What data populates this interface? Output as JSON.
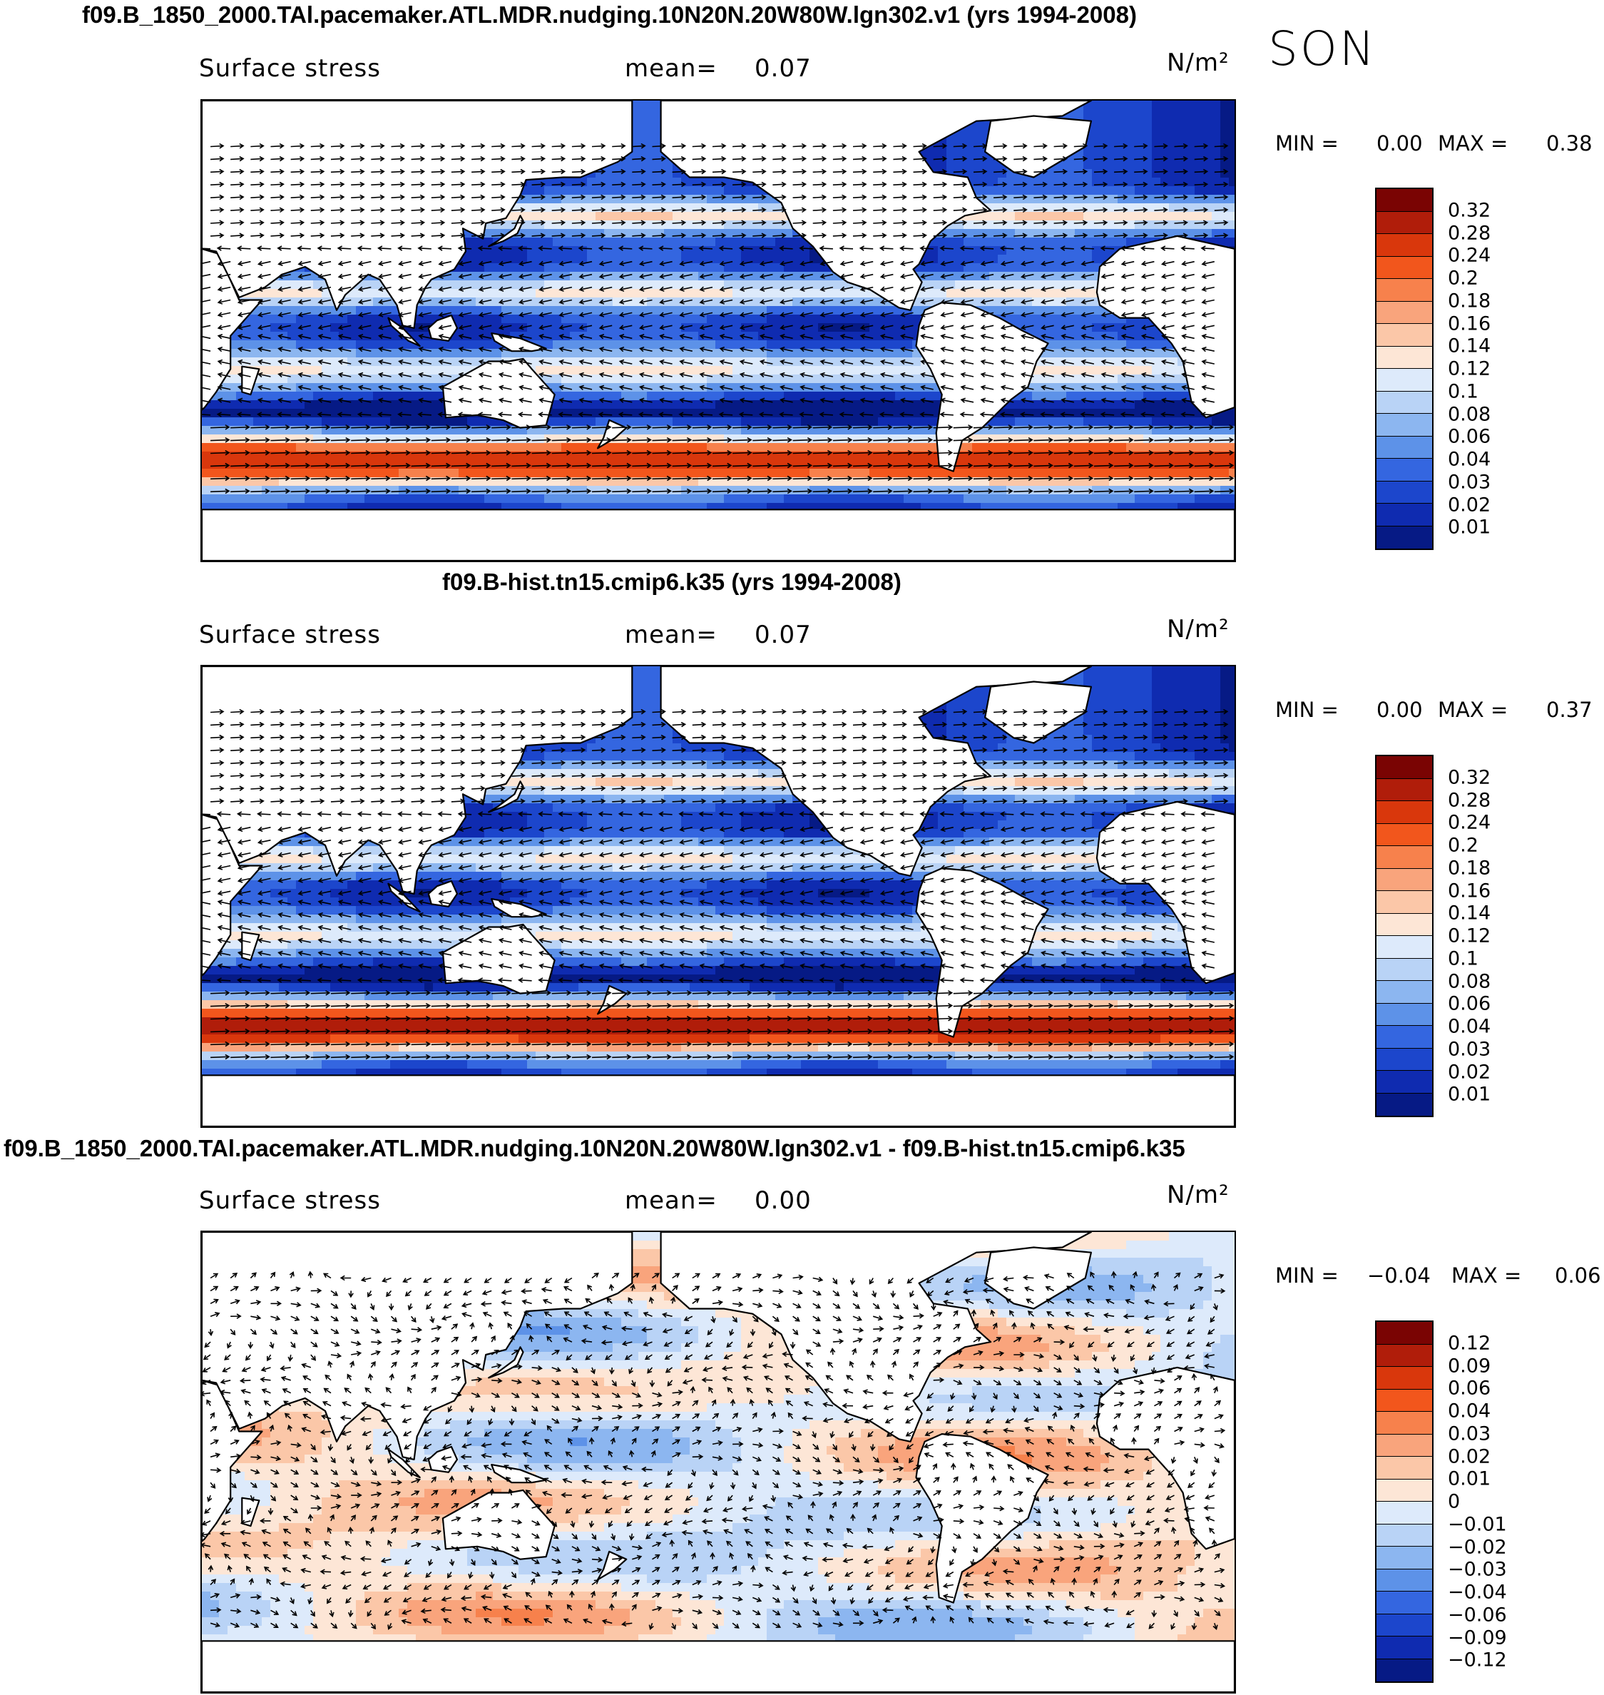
{
  "season": "SON",
  "panels": [
    {
      "title": "f09.B_1850_2000.TAl.pacemaker.ATL.MDR.nudging.10N20N.20W80W.lgn302.v1 (yrs 1994-2008)",
      "variable": "Surface stress",
      "mean_label": "mean=",
      "mean_value": "0.07",
      "units": "N/m²",
      "min_label": "MIN =",
      "min_value": "0.00",
      "max_label": "MAX =",
      "max_value": "0.38",
      "colorbar": {
        "labels": [
          "0.32",
          "0.28",
          "0.24",
          "0.2",
          "0.18",
          "0.16",
          "0.14",
          "0.12",
          "0.1",
          "0.08",
          "0.06",
          "0.04",
          "0.03",
          "0.02",
          "0.01"
        ],
        "colors": [
          "#7a0403",
          "#b01d0a",
          "#d9370c",
          "#f2561c",
          "#f7814c",
          "#f9a47c",
          "#fbc7a8",
          "#fde6d6",
          "#ddeafb",
          "#b9d3f6",
          "#8cb6f0",
          "#5d92e8",
          "#3466e0",
          "#1c46cc",
          "#0f2bb0",
          "#061a85"
        ]
      },
      "chart_data": {
        "type": "heatmap",
        "field": "Surface stress with wind-stress vectors (SON)",
        "units": "N/m²",
        "mean": 0.07,
        "min": 0.0,
        "max": 0.38,
        "features": [
          "strong westerly band 40S-60S (0.18-0.32)",
          "weak stress (0.01-0.04) over subtropical bands",
          "trade winds in tropical Pacific/Atlantic"
        ]
      }
    },
    {
      "title": "f09.B-hist.tn15.cmip6.k35 (yrs 1994-2008)",
      "variable": "Surface stress",
      "mean_label": "mean=",
      "mean_value": "0.07",
      "units": "N/m²",
      "min_label": "MIN =",
      "min_value": "0.00",
      "max_label": "MAX =",
      "max_value": "0.37",
      "colorbar": {
        "labels": [
          "0.32",
          "0.28",
          "0.24",
          "0.2",
          "0.18",
          "0.16",
          "0.14",
          "0.12",
          "0.1",
          "0.08",
          "0.06",
          "0.04",
          "0.03",
          "0.02",
          "0.01"
        ],
        "colors": [
          "#7a0403",
          "#b01d0a",
          "#d9370c",
          "#f2561c",
          "#f7814c",
          "#f9a47c",
          "#fbc7a8",
          "#fde6d6",
          "#ddeafb",
          "#b9d3f6",
          "#8cb6f0",
          "#5d92e8",
          "#3466e0",
          "#1c46cc",
          "#0f2bb0",
          "#061a85"
        ]
      },
      "chart_data": {
        "type": "heatmap",
        "field": "Surface stress with wind-stress vectors (SON)",
        "units": "N/m²",
        "mean": 0.07,
        "min": 0.0,
        "max": 0.37
      }
    },
    {
      "title": "f09.B_1850_2000.TAl.pacemaker.ATL.MDR.nudging.10N20N.20W80W.lgn302.v1 - f09.B-hist.tn15.cmip6.k35",
      "variable": "Surface stress",
      "mean_label": "mean=",
      "mean_value": "0.00",
      "units": "N/m²",
      "min_label": "MIN =",
      "min_value": "−0.04",
      "max_label": "MAX =",
      "max_value": "0.06",
      "colorbar": {
        "labels": [
          "0.12",
          "0.09",
          "0.06",
          "0.04",
          "0.03",
          "0.02",
          "0.01",
          "0",
          "−0.01",
          "−0.02",
          "−0.03",
          "−0.04",
          "−0.06",
          "−0.09",
          "−0.12"
        ],
        "colors": [
          "#7a0403",
          "#b01d0a",
          "#d9370c",
          "#f2561c",
          "#f7814c",
          "#f9a47c",
          "#fbc7a8",
          "#fde6d6",
          "#ddeafb",
          "#b9d3f6",
          "#8cb6f0",
          "#5d92e8",
          "#3466e0",
          "#1c46cc",
          "#0f2bb0",
          "#061a85"
        ]
      },
      "chart_data": {
        "type": "heatmap",
        "field": "Surface stress difference with vector differences (SON)",
        "units": "N/m²",
        "mean": 0.0,
        "min": -0.04,
        "max": 0.06
      }
    }
  ]
}
